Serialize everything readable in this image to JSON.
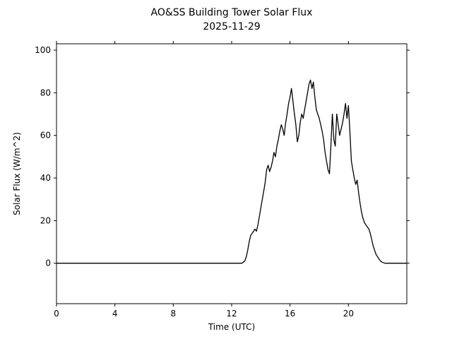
{
  "figure": {
    "title_line1": "AO&SS Building Tower Solar Flux",
    "title_line2": "2025-11-29"
  },
  "chart_data": {
    "type": "line",
    "title": "AO&SS Building Tower Solar Flux",
    "subtitle": "2025-11-29",
    "xlabel": "Time (UTC)",
    "ylabel": "Solar Flux (W/m^2)",
    "xlim": [
      0,
      24
    ],
    "ylim": [
      -19,
      103
    ],
    "xticks": [
      0,
      4,
      8,
      12,
      16,
      20
    ],
    "yticks": [
      0,
      20,
      40,
      60,
      80,
      100
    ],
    "grid": false,
    "legend": "none",
    "line_color": "#000000",
    "background_color": "#ffffff",
    "series": [
      {
        "name": "solar_flux",
        "points": [
          [
            0.0,
            0
          ],
          [
            12.7,
            0
          ],
          [
            12.9,
            1
          ],
          [
            13.0,
            3
          ],
          [
            13.1,
            6
          ],
          [
            13.2,
            10
          ],
          [
            13.3,
            13
          ],
          [
            13.4,
            14
          ],
          [
            13.5,
            15
          ],
          [
            13.6,
            16
          ],
          [
            13.7,
            15
          ],
          [
            13.8,
            18
          ],
          [
            13.9,
            22
          ],
          [
            14.0,
            26
          ],
          [
            14.1,
            30
          ],
          [
            14.2,
            34
          ],
          [
            14.3,
            38
          ],
          [
            14.4,
            44
          ],
          [
            14.5,
            46
          ],
          [
            14.6,
            43
          ],
          [
            14.7,
            45
          ],
          [
            14.8,
            48
          ],
          [
            14.9,
            52
          ],
          [
            15.0,
            50
          ],
          [
            15.1,
            55
          ],
          [
            15.2,
            58
          ],
          [
            15.3,
            62
          ],
          [
            15.4,
            65
          ],
          [
            15.5,
            63
          ],
          [
            15.6,
            60
          ],
          [
            15.7,
            66
          ],
          [
            15.8,
            70
          ],
          [
            15.9,
            75
          ],
          [
            16.0,
            78
          ],
          [
            16.1,
            82
          ],
          [
            16.2,
            76
          ],
          [
            16.3,
            70
          ],
          [
            16.4,
            65
          ],
          [
            16.5,
            57
          ],
          [
            16.6,
            60
          ],
          [
            16.7,
            66
          ],
          [
            16.8,
            70
          ],
          [
            16.9,
            68
          ],
          [
            17.0,
            72
          ],
          [
            17.1,
            76
          ],
          [
            17.2,
            80
          ],
          [
            17.3,
            84
          ],
          [
            17.4,
            86
          ],
          [
            17.5,
            82
          ],
          [
            17.6,
            85
          ],
          [
            17.7,
            78
          ],
          [
            17.8,
            72
          ],
          [
            17.9,
            70
          ],
          [
            18.0,
            68
          ],
          [
            18.1,
            65
          ],
          [
            18.2,
            62
          ],
          [
            18.3,
            58
          ],
          [
            18.4,
            52
          ],
          [
            18.5,
            48
          ],
          [
            18.6,
            44
          ],
          [
            18.7,
            42
          ],
          [
            18.8,
            55
          ],
          [
            18.9,
            70
          ],
          [
            19.0,
            58
          ],
          [
            19.1,
            55
          ],
          [
            19.2,
            70
          ],
          [
            19.3,
            65
          ],
          [
            19.4,
            60
          ],
          [
            19.5,
            63
          ],
          [
            19.6,
            66
          ],
          [
            19.7,
            70
          ],
          [
            19.8,
            75
          ],
          [
            19.9,
            68
          ],
          [
            20.0,
            74
          ],
          [
            20.1,
            62
          ],
          [
            20.2,
            48
          ],
          [
            20.3,
            44
          ],
          [
            20.4,
            40
          ],
          [
            20.5,
            37
          ],
          [
            20.6,
            39
          ],
          [
            20.7,
            33
          ],
          [
            20.8,
            28
          ],
          [
            20.9,
            24
          ],
          [
            21.0,
            21
          ],
          [
            21.1,
            19
          ],
          [
            21.2,
            18
          ],
          [
            21.3,
            17
          ],
          [
            21.4,
            16
          ],
          [
            21.5,
            14
          ],
          [
            21.6,
            11
          ],
          [
            21.7,
            8
          ],
          [
            21.8,
            6
          ],
          [
            21.9,
            4
          ],
          [
            22.0,
            3
          ],
          [
            22.1,
            2
          ],
          [
            22.2,
            1
          ],
          [
            22.3,
            0.5
          ],
          [
            22.5,
            0
          ],
          [
            24.0,
            0
          ]
        ]
      }
    ]
  }
}
